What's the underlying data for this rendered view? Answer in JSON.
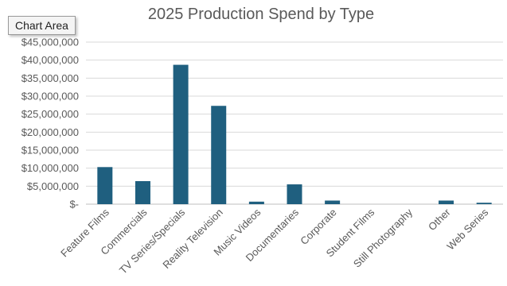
{
  "tooltip": {
    "label": "Chart Area"
  },
  "chart_data": {
    "type": "bar",
    "title": "2025 Production Spend by Type",
    "xlabel": "",
    "ylabel": "",
    "ylim": [
      0,
      45000000
    ],
    "ytick_values": [
      0,
      5000000,
      10000000,
      15000000,
      20000000,
      25000000,
      30000000,
      35000000,
      40000000,
      45000000
    ],
    "ytick_labels": [
      "$-",
      "$5,000,000",
      "$10,000,000",
      "$15,000,000",
      "$20,000,000",
      "$25,000,000",
      "$30,000,000",
      "$35,000,000",
      "$40,000,000",
      "$45,000,000"
    ],
    "categories": [
      "Feature Films",
      "Commercials",
      "TV Series/Specials",
      "Reality Television",
      "Music Videos",
      "Documentaries",
      "Corporate",
      "Student Films",
      "Still Photography",
      "Other",
      "Web Series"
    ],
    "values": [
      10300000,
      6400000,
      38700000,
      27300000,
      700000,
      5500000,
      1000000,
      0,
      0,
      1000000,
      400000
    ],
    "bar_color": "#1f5f7f",
    "grid": true,
    "legend": "none"
  }
}
